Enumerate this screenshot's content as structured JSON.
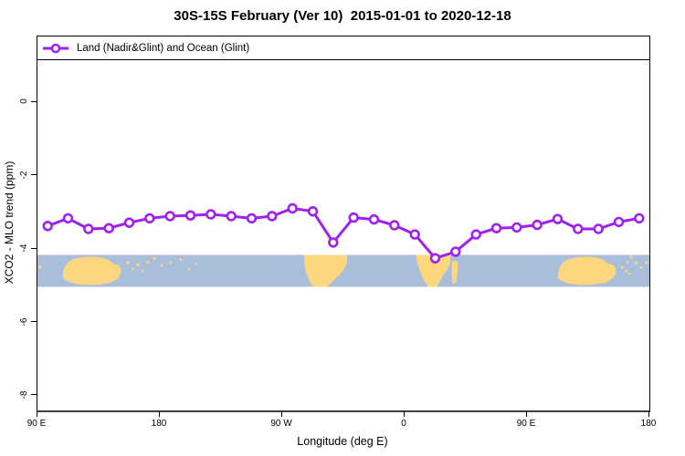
{
  "title": "30S-15S February (Ver 10)  2015-01-01 to 2020-12-18",
  "legend": {
    "label": "Land (Nadir&Glint) and Ocean (Glint)",
    "position": "top"
  },
  "axes": {
    "x_label": "Longitude (deg E)",
    "y_label": "XCO2 - MLO trend (ppm)"
  },
  "colors": {
    "line": "#A020F0",
    "marker_fill": "#FFFFFF",
    "ocean": "#A9BEDA",
    "land": "#FCD77F",
    "frame": "#000000",
    "baseline": "#404040"
  },
  "chart_data": {
    "type": "line",
    "title": "30S-15S February (Ver 10)  2015-01-01 to 2020-12-18",
    "xlabel": "Longitude (deg E)",
    "ylabel": "XCO2 - MLO trend (ppm)",
    "xlim": [
      90,
      540
    ],
    "ylim": [
      -8.4,
      1.8
    ],
    "grid": false,
    "legend_position": "top",
    "x_ticks": [
      {
        "lon": 90,
        "label": "90 E"
      },
      {
        "lon": 180,
        "label": "180"
      },
      {
        "lon": 270,
        "label": "90 W"
      },
      {
        "lon": 360,
        "label": "0"
      },
      {
        "lon": 450,
        "label": "90 E"
      },
      {
        "lon": 540,
        "label": "180"
      }
    ],
    "y_ticks": [
      {
        "value": 0,
        "label": "0"
      },
      {
        "value": -2,
        "label": "-2"
      },
      {
        "value": -4,
        "label": "-4"
      },
      {
        "value": -6,
        "label": "-6"
      },
      {
        "value": -8,
        "label": "-8"
      }
    ],
    "series": [
      {
        "name": "Land (Nadir&Glint) and Ocean (Glint)",
        "x_deg_east": [
          97.5,
          112.5,
          127.5,
          142.5,
          157.5,
          172.5,
          187.5,
          202.5,
          217.5,
          232.5,
          247.5,
          262.5,
          277.5,
          292.5,
          307.5,
          322.5,
          337.5,
          352.5,
          367.5,
          382.5,
          397.5,
          412.5,
          427.5,
          442.5,
          457.5,
          472.5,
          487.5,
          502.5,
          517.5,
          532.5
        ],
        "values_ppm": [
          -3.37,
          -3.16,
          -3.45,
          -3.43,
          -3.28,
          -3.16,
          -3.1,
          -3.08,
          -3.05,
          -3.1,
          -3.16,
          -3.1,
          -2.89,
          -2.97,
          -3.82,
          -3.14,
          -3.19,
          -3.35,
          -3.6,
          -4.25,
          -4.07,
          -3.6,
          -3.43,
          -3.41,
          -3.34,
          -3.18,
          -3.45,
          -3.45,
          -3.26,
          -3.16
        ]
      }
    ],
    "map_strip_band_ppm": [
      -4.12,
      -4.99
    ]
  }
}
